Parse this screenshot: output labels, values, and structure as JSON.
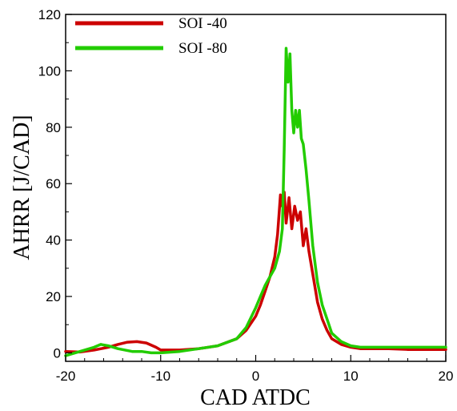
{
  "chart_data": {
    "type": "line",
    "xlabel": "CAD ATDC",
    "ylabel": "AHRR [J/CAD]",
    "xlim": [
      -20,
      20
    ],
    "ylim": [
      -3,
      120
    ],
    "xticks": [
      -20,
      -10,
      0,
      10,
      20
    ],
    "yticks": [
      0,
      20,
      40,
      60,
      80,
      100,
      120
    ],
    "grid": false,
    "legend_position": "top-left",
    "series": [
      {
        "name": "SOI -40",
        "color": "#cc0000",
        "x": [
          -20,
          -18.5,
          -17,
          -15.5,
          -14.5,
          -13.5,
          -12.5,
          -11.5,
          -10.5,
          -10,
          -8,
          -6,
          -4,
          -2,
          -1,
          0,
          0.5,
          1,
          1.5,
          2,
          2.3,
          2.6,
          2.8,
          3.0,
          3.2,
          3.5,
          3.8,
          4.1,
          4.4,
          4.7,
          5.0,
          5.3,
          5.6,
          6.0,
          6.5,
          7,
          7.5,
          8,
          9,
          10,
          11,
          12,
          14,
          16,
          18,
          20
        ],
        "y": [
          0.5,
          0.3,
          1.0,
          2.0,
          3.0,
          3.8,
          4.0,
          3.5,
          2.0,
          1.0,
          1.0,
          1.5,
          2.5,
          5,
          8,
          13,
          17,
          22,
          27,
          34,
          42,
          56,
          52,
          57,
          46,
          55,
          44,
          52,
          47,
          50,
          38,
          44,
          36,
          28,
          18,
          12,
          8,
          5,
          3,
          2,
          1.5,
          1.5,
          1.5,
          1.2,
          1.2,
          1.2
        ]
      },
      {
        "name": "SOI -80",
        "color": "#22cc00",
        "x": [
          -20,
          -19,
          -18,
          -17,
          -16.3,
          -15.5,
          -14.5,
          -13,
          -12,
          -11,
          -10,
          -8,
          -6,
          -4,
          -2,
          -1,
          0,
          0.5,
          1,
          1.5,
          2,
          2.5,
          2.8,
          3.0,
          3.2,
          3.4,
          3.6,
          3.8,
          4.0,
          4.2,
          4.4,
          4.6,
          4.8,
          5.0,
          5.3,
          5.6,
          6.0,
          6.5,
          7,
          7.5,
          8,
          9,
          10,
          11,
          12,
          14,
          16,
          18,
          20
        ],
        "y": [
          -1,
          0,
          1,
          2,
          3,
          2.5,
          1.5,
          0.5,
          0.5,
          0,
          0,
          0.5,
          1.5,
          2.5,
          5,
          9,
          16,
          20,
          24,
          27,
          30,
          36,
          44,
          72,
          108,
          96,
          106,
          86,
          78,
          86,
          80,
          86,
          76,
          74,
          65,
          54,
          38,
          25,
          17,
          12,
          7,
          4,
          2.5,
          2,
          2,
          2,
          2,
          2,
          2
        ]
      }
    ]
  }
}
